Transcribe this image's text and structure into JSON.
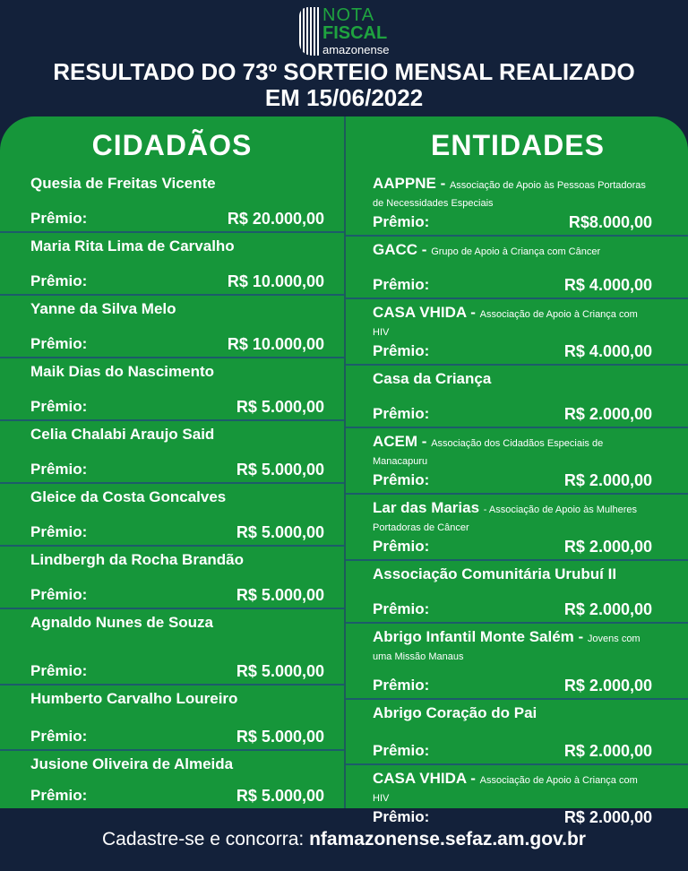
{
  "logo": {
    "line1": "NOTA",
    "line2": "FISCAL",
    "line3": "amazonense"
  },
  "title_line1": "RESULTADO DO 73º SORTEIO MENSAL REALIZADO",
  "title_line2": "EM 15/06/2022",
  "prize_label": "Prêmio:",
  "cidadaos": {
    "heading": "CIDADÃOS",
    "items": [
      {
        "name": "Quesia de Freitas Vicente",
        "prize": "R$ 20.000,00"
      },
      {
        "name": "Maria Rita Lima de Carvalho",
        "prize": "R$ 10.000,00"
      },
      {
        "name": "Yanne da Silva Melo",
        "prize": "R$ 10.000,00"
      },
      {
        "name": "Maik Dias do Nascimento",
        "prize": "R$ 5.000,00"
      },
      {
        "name": "Celia Chalabi Araujo Said",
        "prize": "R$ 5.000,00"
      },
      {
        "name": "Gleice da Costa Goncalves",
        "prize": "R$ 5.000,00"
      },
      {
        "name": "Lindbergh da Rocha Brandão",
        "prize": "R$ 5.000,00"
      },
      {
        "name": "Agnaldo Nunes de Souza",
        "prize": "R$ 5.000,00"
      },
      {
        "name": "Humberto Carvalho Loureiro",
        "prize": "R$ 5.000,00"
      },
      {
        "name": "Jusione Oliveira de Almeida",
        "prize": "R$ 5.000,00"
      }
    ]
  },
  "entidades": {
    "heading": "ENTIDADES",
    "items": [
      {
        "name": "AAPPNE -",
        "desc": "Associação de Apoio às Pessoas Portadoras de Necessidades Especiais",
        "prize": "R$8.000,00"
      },
      {
        "name": "GACC -",
        "desc": "Grupo de Apoio à Criança com Câncer",
        "prize": "R$ 4.000,00"
      },
      {
        "name": "CASA VHIDA -",
        "desc": "Associação de Apoio à Criança com HIV",
        "prize": "R$ 4.000,00"
      },
      {
        "name": "Casa da Criança",
        "desc": "",
        "prize": "R$ 2.000,00"
      },
      {
        "name": "ACEM -",
        "desc": "Associação dos Cidadãos Especiais de Manacapuru",
        "prize": "R$ 2.000,00"
      },
      {
        "name": "Lar das Marias",
        "desc": "- Associação de Apoio às Mulheres Portadoras de Câncer",
        "prize": "R$ 2.000,00"
      },
      {
        "name": "Associação Comunitária Urubuí II",
        "desc": "",
        "prize": "R$ 2.000,00"
      },
      {
        "name": "Abrigo Infantil Monte Salém -",
        "desc": "Jovens com uma Missão Manaus",
        "prize": "R$ 2.000,00"
      },
      {
        "name": "Abrigo Coração do Pai",
        "desc": "",
        "prize": "R$ 2.000,00"
      },
      {
        "name": "CASA VHIDA -",
        "desc": "Associação de Apoio à Criança com HIV",
        "prize": "R$ 2.000,00"
      }
    ]
  },
  "footer": {
    "text": "Cadastre-se e concorra: ",
    "url": "nfamazonense.sefaz.am.gov.br"
  },
  "colors": {
    "background": "#13213a",
    "green": "#16963a"
  }
}
